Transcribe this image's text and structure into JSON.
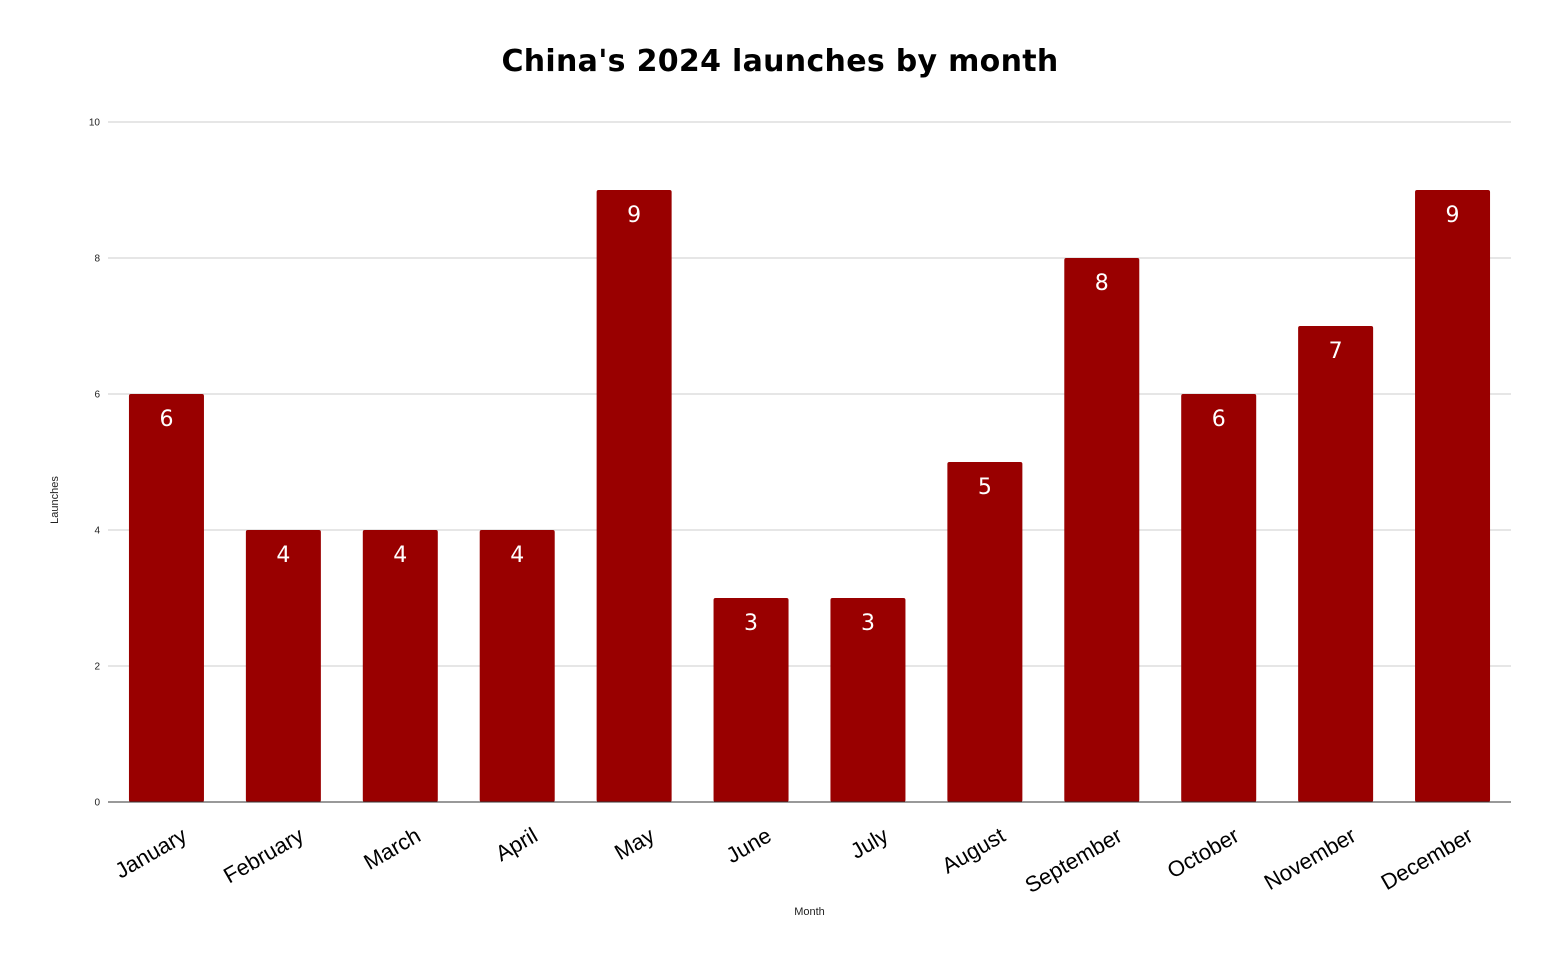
{
  "chart_data": {
    "type": "bar",
    "title": "China's 2024 launches by month",
    "xlabel": "Month",
    "ylabel": "Launches",
    "categories": [
      "January",
      "February",
      "March",
      "April",
      "May",
      "June",
      "July",
      "August",
      "September",
      "October",
      "November",
      "December"
    ],
    "values": [
      6,
      4,
      4,
      4,
      9,
      3,
      3,
      5,
      8,
      6,
      7,
      9
    ],
    "ylim": [
      0,
      10
    ],
    "yticks": [
      0,
      2,
      4,
      6,
      8,
      10
    ],
    "grid": true,
    "legend": "none",
    "data_labels": true,
    "colors": {
      "bar": "#990000",
      "gridline": "#cccccc",
      "baseline": "#333333",
      "data_label": "#ffffff"
    }
  }
}
